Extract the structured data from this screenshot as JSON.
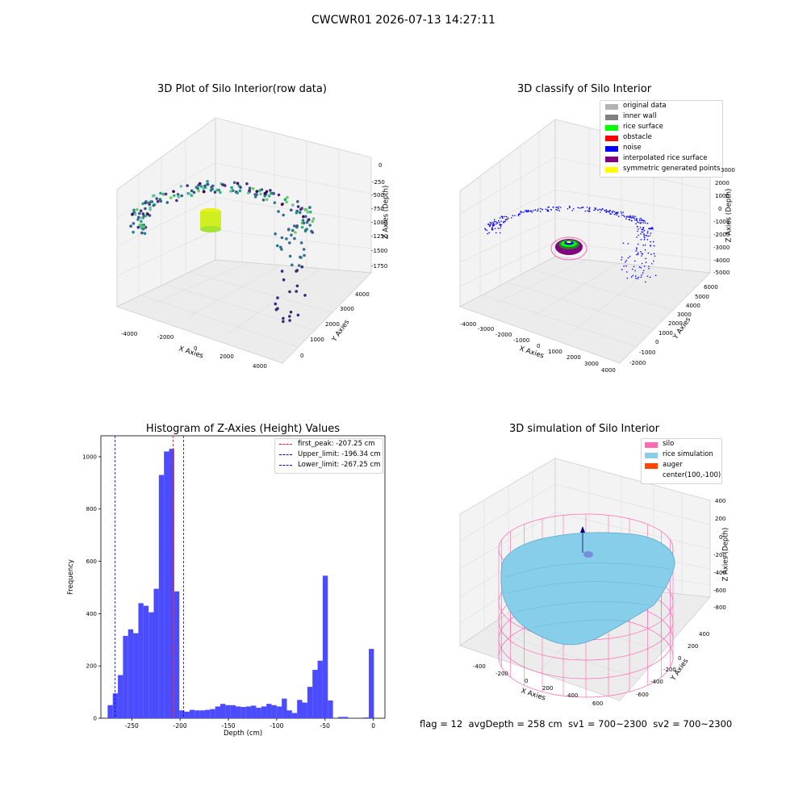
{
  "suptitle": "CWCWR01 2026-07-13 14:27:11",
  "colors": {
    "hist_bar": "#4b4bff",
    "first_peak": "#e41a1c",
    "upper_limit": "#0000cc",
    "lower_limit": "#0000cc",
    "silo": "#ff69b4",
    "rice_simulation": "#87ceeb",
    "auger": "#ff4500"
  },
  "panels": {
    "p1": {
      "title": "3D Plot of Silo Interior(row data)",
      "xlabel": "X Axies",
      "ylabel": "Y Axies",
      "zlabel": "Z Axies (Depth)",
      "xticks": [
        "-4000",
        "-2000",
        "0",
        "2000",
        "4000"
      ],
      "yticks": [
        "0",
        "1000",
        "2000",
        "3000",
        "4000"
      ],
      "zticks": [
        "0",
        "-250",
        "-500",
        "-750",
        "-1000",
        "-1250",
        "-1500",
        "-1750"
      ]
    },
    "p2": {
      "title": "3D classify of Silo Interior",
      "xlabel": "X Axies",
      "ylabel": "Y Axies",
      "zlabel": "Z Axies (Depth)",
      "xticks": [
        "-4000",
        "-3000",
        "-2000",
        "-1000",
        "0",
        "1000",
        "2000",
        "3000",
        "4000"
      ],
      "yticks": [
        "-2000",
        "-1000",
        "0",
        "1000",
        "2000",
        "3000",
        "4000",
        "5000",
        "6000"
      ],
      "zticks": [
        "3000",
        "2000",
        "1000",
        "0",
        "-1000",
        "-2000",
        "-3000",
        "-4000",
        "-5000"
      ],
      "legend": [
        {
          "label": "original data",
          "color": "#b3b3b3"
        },
        {
          "label": "inner wall",
          "color": "#808080"
        },
        {
          "label": "rice surface",
          "color": "#00ff00"
        },
        {
          "label": "obstacle",
          "color": "#ff0000"
        },
        {
          "label": "noise",
          "color": "#0000ff"
        },
        {
          "label": "interpolated rice surface",
          "color": "#800080"
        },
        {
          "label": "symmetric generated points",
          "color": "#ffff00"
        }
      ]
    },
    "p3": {
      "title": "3D simulation of Silo Interior",
      "xlabel": "X Axies",
      "ylabel": "Y Axies",
      "zlabel": "Z Axies (Depth)",
      "xticks": [
        "-400",
        "-200",
        "0",
        "200",
        "400",
        "600"
      ],
      "yticks": [
        "-600",
        "-400",
        "-200",
        "0",
        "200",
        "400"
      ],
      "zticks": [
        "400",
        "200",
        "0",
        "-200",
        "-400",
        "-600",
        "-800"
      ],
      "legend": [
        {
          "label": "silo",
          "color": "#ff69b4"
        },
        {
          "label": "rice simulation",
          "color": "#87ceeb"
        },
        {
          "label": "auger",
          "color": "#ff4500"
        },
        {
          "label": "center(100,-100)",
          "color": ""
        }
      ]
    }
  },
  "chart_data": {
    "type": "bar",
    "title": "Histogram of Z-Axies (Height) Values",
    "xlabel": "Depth (cm)",
    "ylabel": "Frequency",
    "xlim": [
      -282,
      12
    ],
    "ylim": [
      0,
      1080
    ],
    "xticks": [
      -250,
      -200,
      -150,
      -100,
      -50,
      0
    ],
    "yticks": [
      0,
      200,
      400,
      600,
      800,
      1000
    ],
    "bin_width": 5.3,
    "bins_start": [
      -275,
      -269.7,
      -264.4,
      -259.1,
      -253.8,
      -248.5,
      -243.2,
      -237.9,
      -232.6,
      -227.3,
      -222,
      -216.7,
      -211.4,
      -206.1,
      -200.8,
      -195.5,
      -190.2,
      -184.9,
      -179.6,
      -174.3,
      -169,
      -163.7,
      -158.4,
      -153.1,
      -147.8,
      -142.5,
      -137.2,
      -131.9,
      -126.6,
      -121.3,
      -116,
      -110.7,
      -105.4,
      -100.1,
      -94.8,
      -89.5,
      -84.2,
      -78.9,
      -73.6,
      -68.3,
      -63,
      -57.7,
      -52.4,
      -47.1,
      -41.8,
      -36.5,
      -31.2,
      -25.9,
      -20.6,
      -15.3,
      -10,
      -4.7
    ],
    "counts": [
      50,
      95,
      165,
      315,
      340,
      325,
      440,
      430,
      405,
      495,
      930,
      1020,
      1030,
      485,
      30,
      25,
      32,
      30,
      30,
      32,
      35,
      45,
      55,
      50,
      50,
      45,
      43,
      45,
      48,
      40,
      45,
      55,
      50,
      45,
      75,
      30,
      20,
      70,
      60,
      120,
      185,
      220,
      545,
      68,
      0,
      5,
      5,
      0,
      0,
      0,
      3,
      265
    ],
    "vlines": [
      {
        "label": "first_peak: -207.25 cm",
        "x": -207.25,
        "color": "#e41a1c"
      },
      {
        "label": "Upper_limit: -196.34 cm",
        "x": -196.34,
        "color": "#0000cc"
      },
      {
        "label": "Lower_limit: -267.25 cm",
        "x": -267.25,
        "color": "#0000cc"
      }
    ]
  },
  "status": {
    "flag": "flag = 12",
    "avg_depth": "avgDepth = 258 cm",
    "sv1": "sv1 = 700~2300",
    "sv2": "sv2 = 700~2300"
  }
}
